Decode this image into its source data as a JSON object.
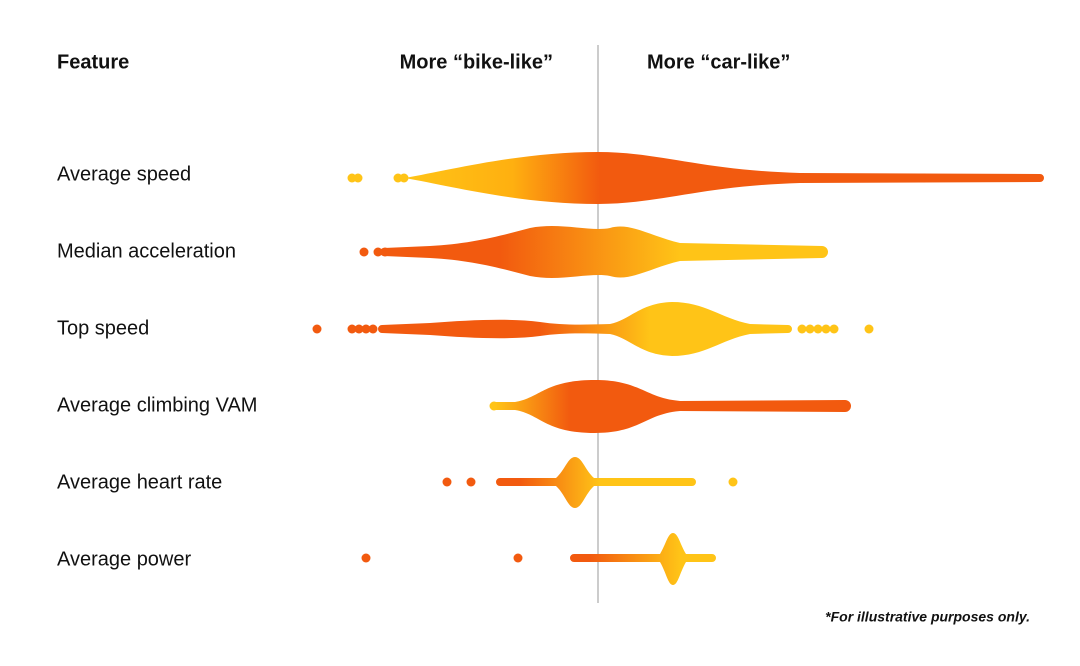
{
  "header": {
    "feature": "Feature",
    "left": "More “bike-like”",
    "right": "More “car-like”"
  },
  "rows": [
    "Average speed",
    "Median acceleration",
    "Top speed",
    "Average climbing VAM",
    "Average heart rate",
    "Average power"
  ],
  "footnote": "*For illustrative purposes only."
}
